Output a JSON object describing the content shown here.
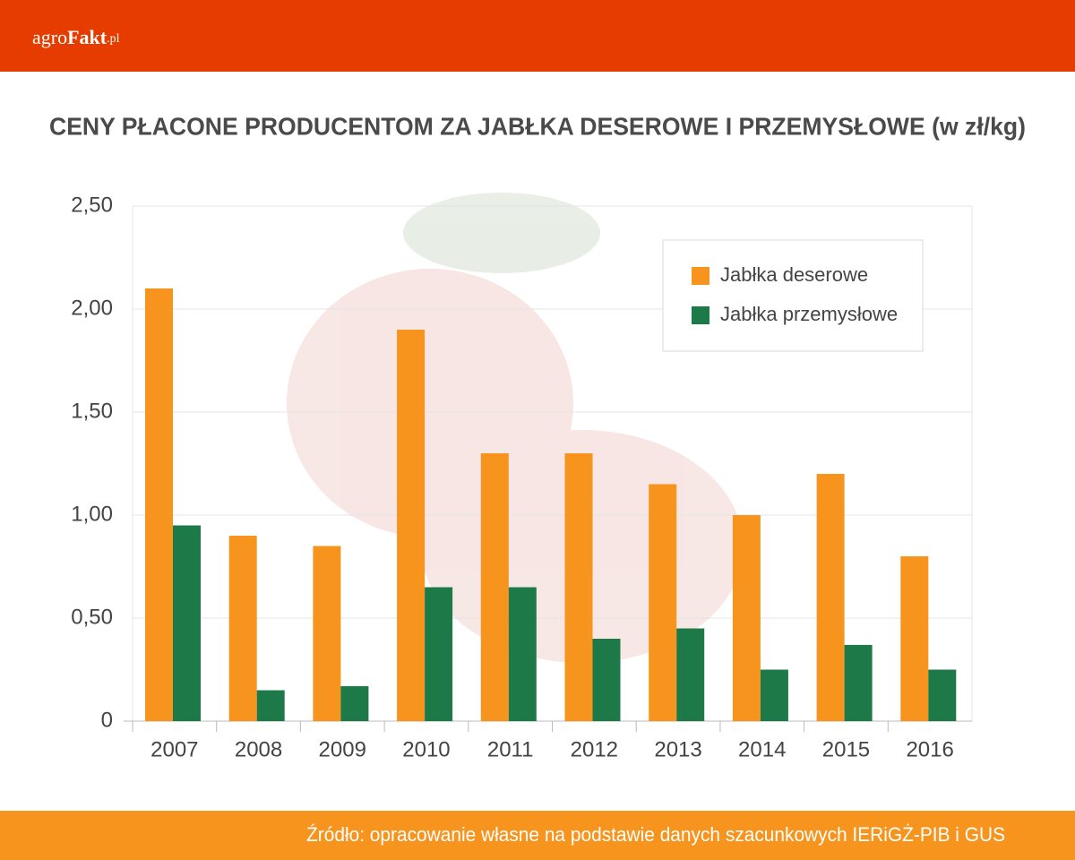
{
  "header": {
    "logo": [
      "agro",
      "Fakt",
      ".pl"
    ]
  },
  "chart_data": {
    "type": "bar",
    "title": "CENY PŁACONE PRODUCENTOM ZA JABŁKA DESEROWE I PRZEMYSŁOWE (w zł/kg)",
    "categories": [
      "2007",
      "2008",
      "2009",
      "2010",
      "2011",
      "2012",
      "2013",
      "2014",
      "2015",
      "2016"
    ],
    "series": [
      {
        "name": "Jabłka deserowe",
        "color": "#f7941d",
        "values": [
          2.1,
          0.9,
          0.85,
          1.9,
          1.3,
          1.3,
          1.15,
          1.0,
          1.2,
          0.8
        ]
      },
      {
        "name": "Jabłka przemysłowe",
        "color": "#1d7a48",
        "values": [
          0.95,
          0.15,
          0.17,
          0.65,
          0.65,
          0.4,
          0.45,
          0.25,
          0.37,
          0.25
        ]
      }
    ],
    "ylim": [
      0,
      2.5
    ],
    "yticks": [
      0,
      {
        "value": 0.5,
        "label": "0,50"
      },
      {
        "value": 1,
        "label": "1,00"
      },
      {
        "value": 1.5,
        "label": "1,50"
      },
      {
        "value": 2,
        "label": "2,00"
      },
      {
        "value": 2.5,
        "label": "2,50"
      }
    ],
    "grid": true,
    "legend": "upper right"
  },
  "footer": {
    "source": "Źródło: opracowanie własne na podstawie danych szacunkowych IERiGŻ-PIB i GUS"
  }
}
